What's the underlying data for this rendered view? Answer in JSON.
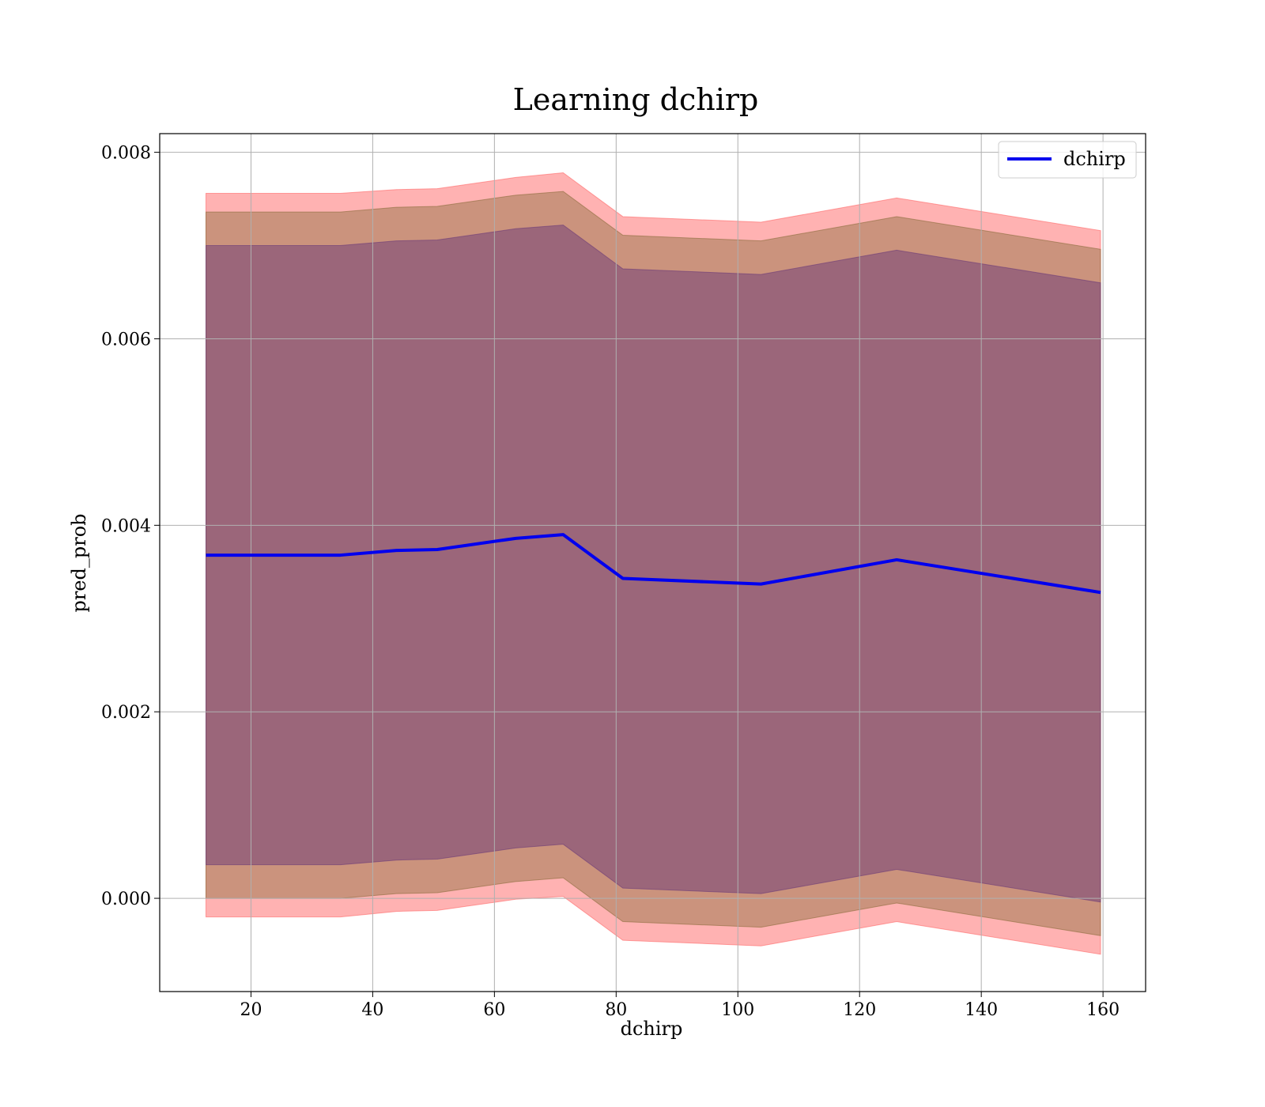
{
  "chart_data": {
    "type": "line",
    "title": "Learning dchirp",
    "xlabel": "dchirp",
    "ylabel": "pred_prob",
    "xlim": [
      5,
      167
    ],
    "ylim": [
      -0.001,
      0.0082
    ],
    "xticks": [
      20,
      40,
      60,
      80,
      100,
      120,
      140,
      160
    ],
    "yticks": [
      0.0,
      0.002,
      0.004,
      0.006,
      0.008
    ],
    "xtick_labels": [
      "20",
      "40",
      "60",
      "80",
      "100",
      "120",
      "140",
      "160"
    ],
    "ytick_labels": [
      "0.000",
      "0.002",
      "0.004",
      "0.006",
      "0.008"
    ],
    "grid": true,
    "legend": {
      "placement": "top-right",
      "entries": [
        "dchirp"
      ]
    },
    "x": [
      12.6,
      34.7,
      43.9,
      50.6,
      63.5,
      71.3,
      81.1,
      103.8,
      126.1,
      159.6
    ],
    "series": [
      {
        "name": "dchirp",
        "color": "#0000ee",
        "values": [
          0.00368,
          0.00368,
          0.00373,
          0.00374,
          0.00386,
          0.0039,
          0.00343,
          0.00337,
          0.00363,
          0.00328
        ]
      }
    ],
    "bands": [
      {
        "color": "#ff6666",
        "opacity": 0.5,
        "lower": [
          -0.0002,
          -0.0002,
          -0.00014,
          -0.00013,
          -1e-05,
          2e-05,
          -0.00045,
          -0.00051,
          -0.00025,
          -0.0006
        ],
        "upper": [
          0.00756,
          0.00756,
          0.0076,
          0.00761,
          0.00773,
          0.00778,
          0.00731,
          0.00725,
          0.00751,
          0.00716
        ]
      },
      {
        "color": "#8b6d3c",
        "opacity": 0.45,
        "lower": [
          0.0,
          0.0,
          5e-05,
          6e-05,
          0.00018,
          0.00022,
          -0.00025,
          -0.00031,
          -5e-05,
          -0.0004
        ],
        "upper": [
          0.00736,
          0.00736,
          0.00741,
          0.00742,
          0.00754,
          0.00758,
          0.00711,
          0.00705,
          0.00731,
          0.00696
        ]
      },
      {
        "color": "#6b3a78",
        "opacity": 0.5,
        "lower": [
          0.00036,
          0.00036,
          0.00041,
          0.00042,
          0.00054,
          0.00058,
          0.00011,
          5e-05,
          0.00031,
          -4e-05
        ],
        "upper": [
          0.007,
          0.007,
          0.00705,
          0.00706,
          0.00718,
          0.00722,
          0.00675,
          0.00669,
          0.00695,
          0.0066
        ]
      }
    ]
  }
}
